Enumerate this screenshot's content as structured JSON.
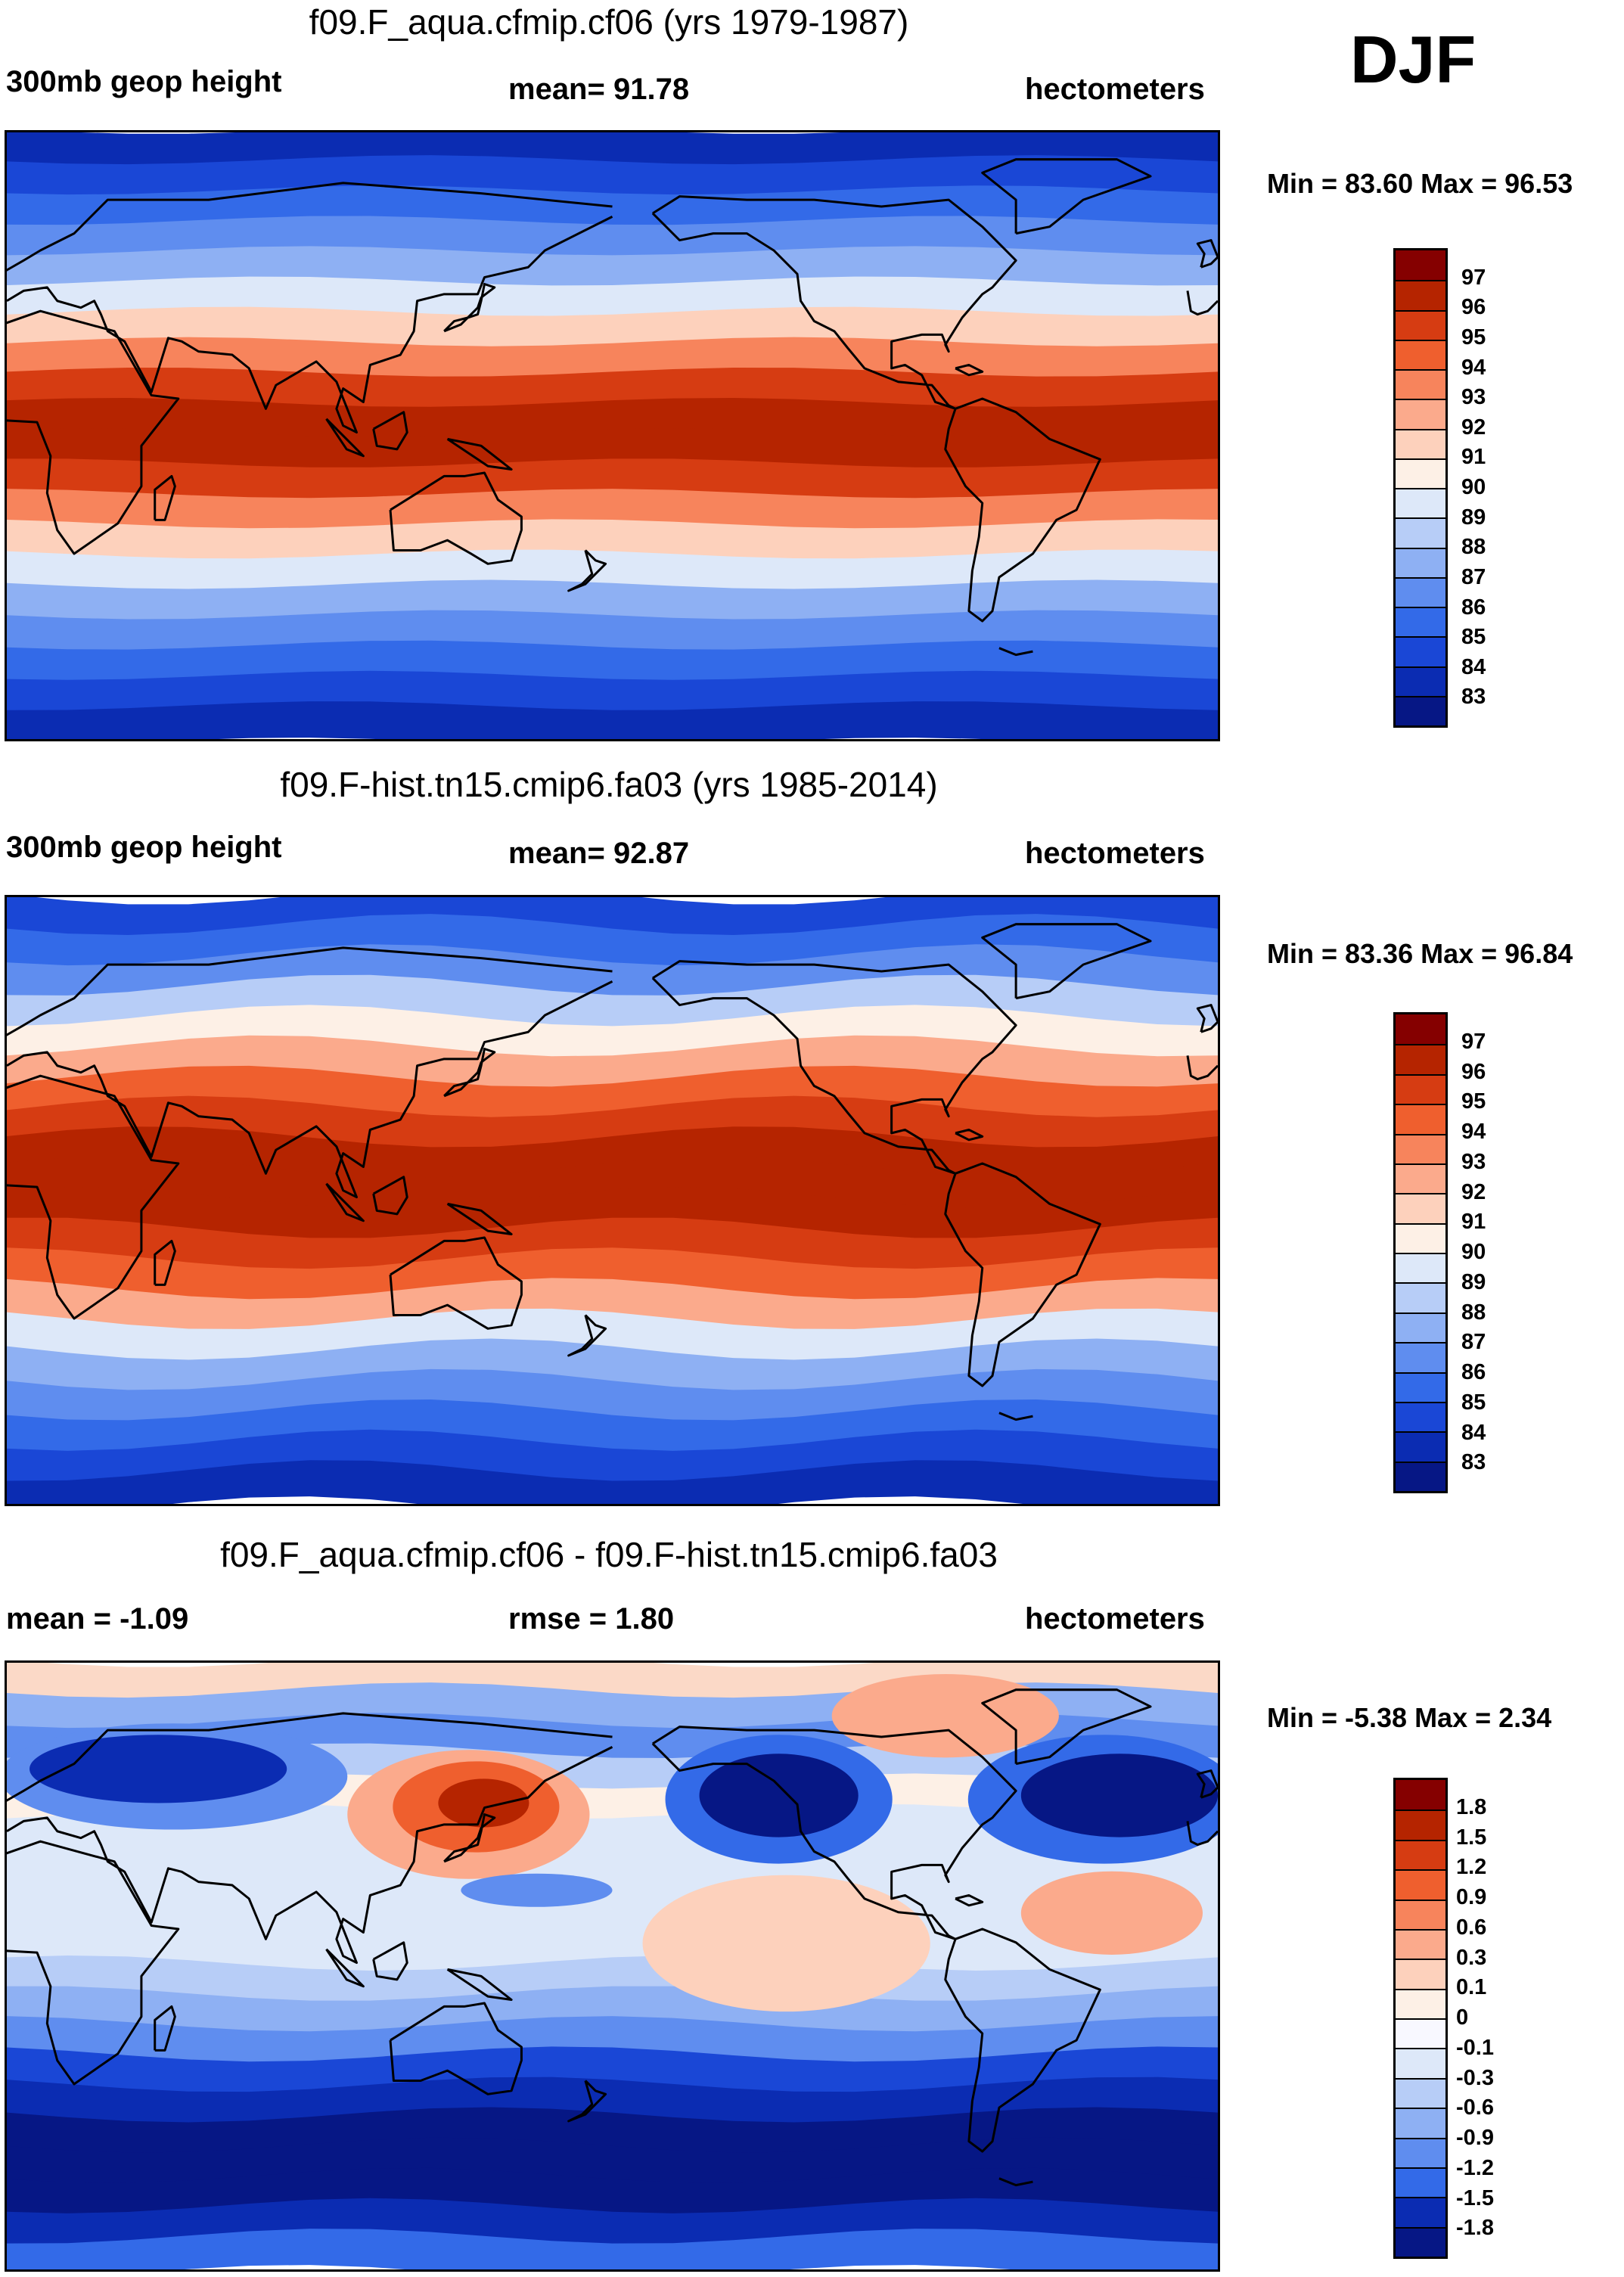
{
  "season": "DJF",
  "panels": [
    {
      "title": "f09.F_aqua.cfmip.cf06 (yrs 1979-1987)",
      "left_label": "300mb geop height",
      "center_label": "mean=  91.78",
      "right_label": "hectometers",
      "minmax": "Min =  83.60 Max =  96.53",
      "colorbar_labels": [
        "97",
        "96",
        "95",
        "94",
        "93",
        "92",
        "91",
        "90",
        "89",
        "88",
        "87",
        "86",
        "85",
        "84",
        "83"
      ],
      "colorbar_colors": [
        "#850000",
        "#b52400",
        "#d63c12",
        "#ef5f2e",
        "#f7845c",
        "#fbaa8c",
        "#fdd1bc",
        "#fdf0e6",
        "#dde8f9",
        "#b7cdf7",
        "#8eb0f3",
        "#5f8def",
        "#336ae8",
        "#1a47d6",
        "#0b2cb2",
        "#061785"
      ],
      "band_colors": [
        "#0b2cb2",
        "#1a47d6",
        "#336ae8",
        "#5f8def",
        "#8eb0f3",
        "#dde8f9",
        "#fdd1bc",
        "#f7845c",
        "#d63c12",
        "#b52400",
        "#b52400",
        "#d63c12",
        "#f7845c",
        "#fdd1bc",
        "#dde8f9",
        "#8eb0f3",
        "#5f8def",
        "#336ae8",
        "#1a47d6",
        "#0b2cb2"
      ]
    },
    {
      "title": "f09.F-hist.tn15.cmip6.fa03 (yrs 1985-2014)",
      "left_label": "300mb geop height",
      "center_label": "mean=  92.87",
      "right_label": "hectometers",
      "minmax": "Min =  83.36 Max =  96.84",
      "colorbar_labels": [
        "97",
        "96",
        "95",
        "94",
        "93",
        "92",
        "91",
        "90",
        "89",
        "88",
        "87",
        "86",
        "85",
        "84",
        "83"
      ],
      "colorbar_colors": [
        "#850000",
        "#b52400",
        "#d63c12",
        "#ef5f2e",
        "#f7845c",
        "#fbaa8c",
        "#fdd1bc",
        "#fdf0e6",
        "#dde8f9",
        "#b7cdf7",
        "#8eb0f3",
        "#5f8def",
        "#336ae8",
        "#1a47d6",
        "#0b2cb2",
        "#061785"
      ],
      "band_colors": [
        "#1a47d6",
        "#336ae8",
        "#5f8def",
        "#b7cdf7",
        "#fdf0e6",
        "#fbaa8c",
        "#ef5f2e",
        "#d63c12",
        "#b52400",
        "#b52400",
        "#b52400",
        "#d63c12",
        "#ef5f2e",
        "#fbaa8c",
        "#dde8f9",
        "#8eb0f3",
        "#5f8def",
        "#336ae8",
        "#1a47d6",
        "#0b2cb2"
      ]
    },
    {
      "title": "f09.F_aqua.cfmip.cf06 - f09.F-hist.tn15.cmip6.fa03",
      "left_label": "mean =  -1.09",
      "center_label": "rmse =   1.80",
      "right_label": "hectometers",
      "minmax": "Min =  -5.38 Max =   2.34",
      "colorbar_labels": [
        "1.8",
        "1.5",
        "1.2",
        "0.9",
        "0.6",
        "0.3",
        "0.1",
        "0",
        "-0.1",
        "-0.3",
        "-0.6",
        "-0.9",
        "-1.2",
        "-1.5",
        "-1.8"
      ],
      "colorbar_colors": [
        "#850000",
        "#b52400",
        "#d63c12",
        "#ef5f2e",
        "#f7845c",
        "#fbaa8c",
        "#fdd1bc",
        "#fdf0e6",
        "#f8f8ff",
        "#dde8f9",
        "#b7cdf7",
        "#8eb0f3",
        "#5f8def",
        "#336ae8",
        "#0b2cb2",
        "#061785"
      ],
      "band_colors": [
        "#fbd9c7",
        "#8eb0f3",
        "#5f8def",
        "#b7cdf7",
        "#fdf0e6",
        "#dde8f9",
        "#dde8f9",
        "#dde8f9",
        "#dde8f9",
        "#dde8f9",
        "#b7cdf7",
        "#8eb0f3",
        "#5f8def",
        "#1a47d6",
        "#0b2cb2",
        "#061785",
        "#061785",
        "#061785",
        "#0b2cb2",
        "#336ae8"
      ]
    }
  ]
}
